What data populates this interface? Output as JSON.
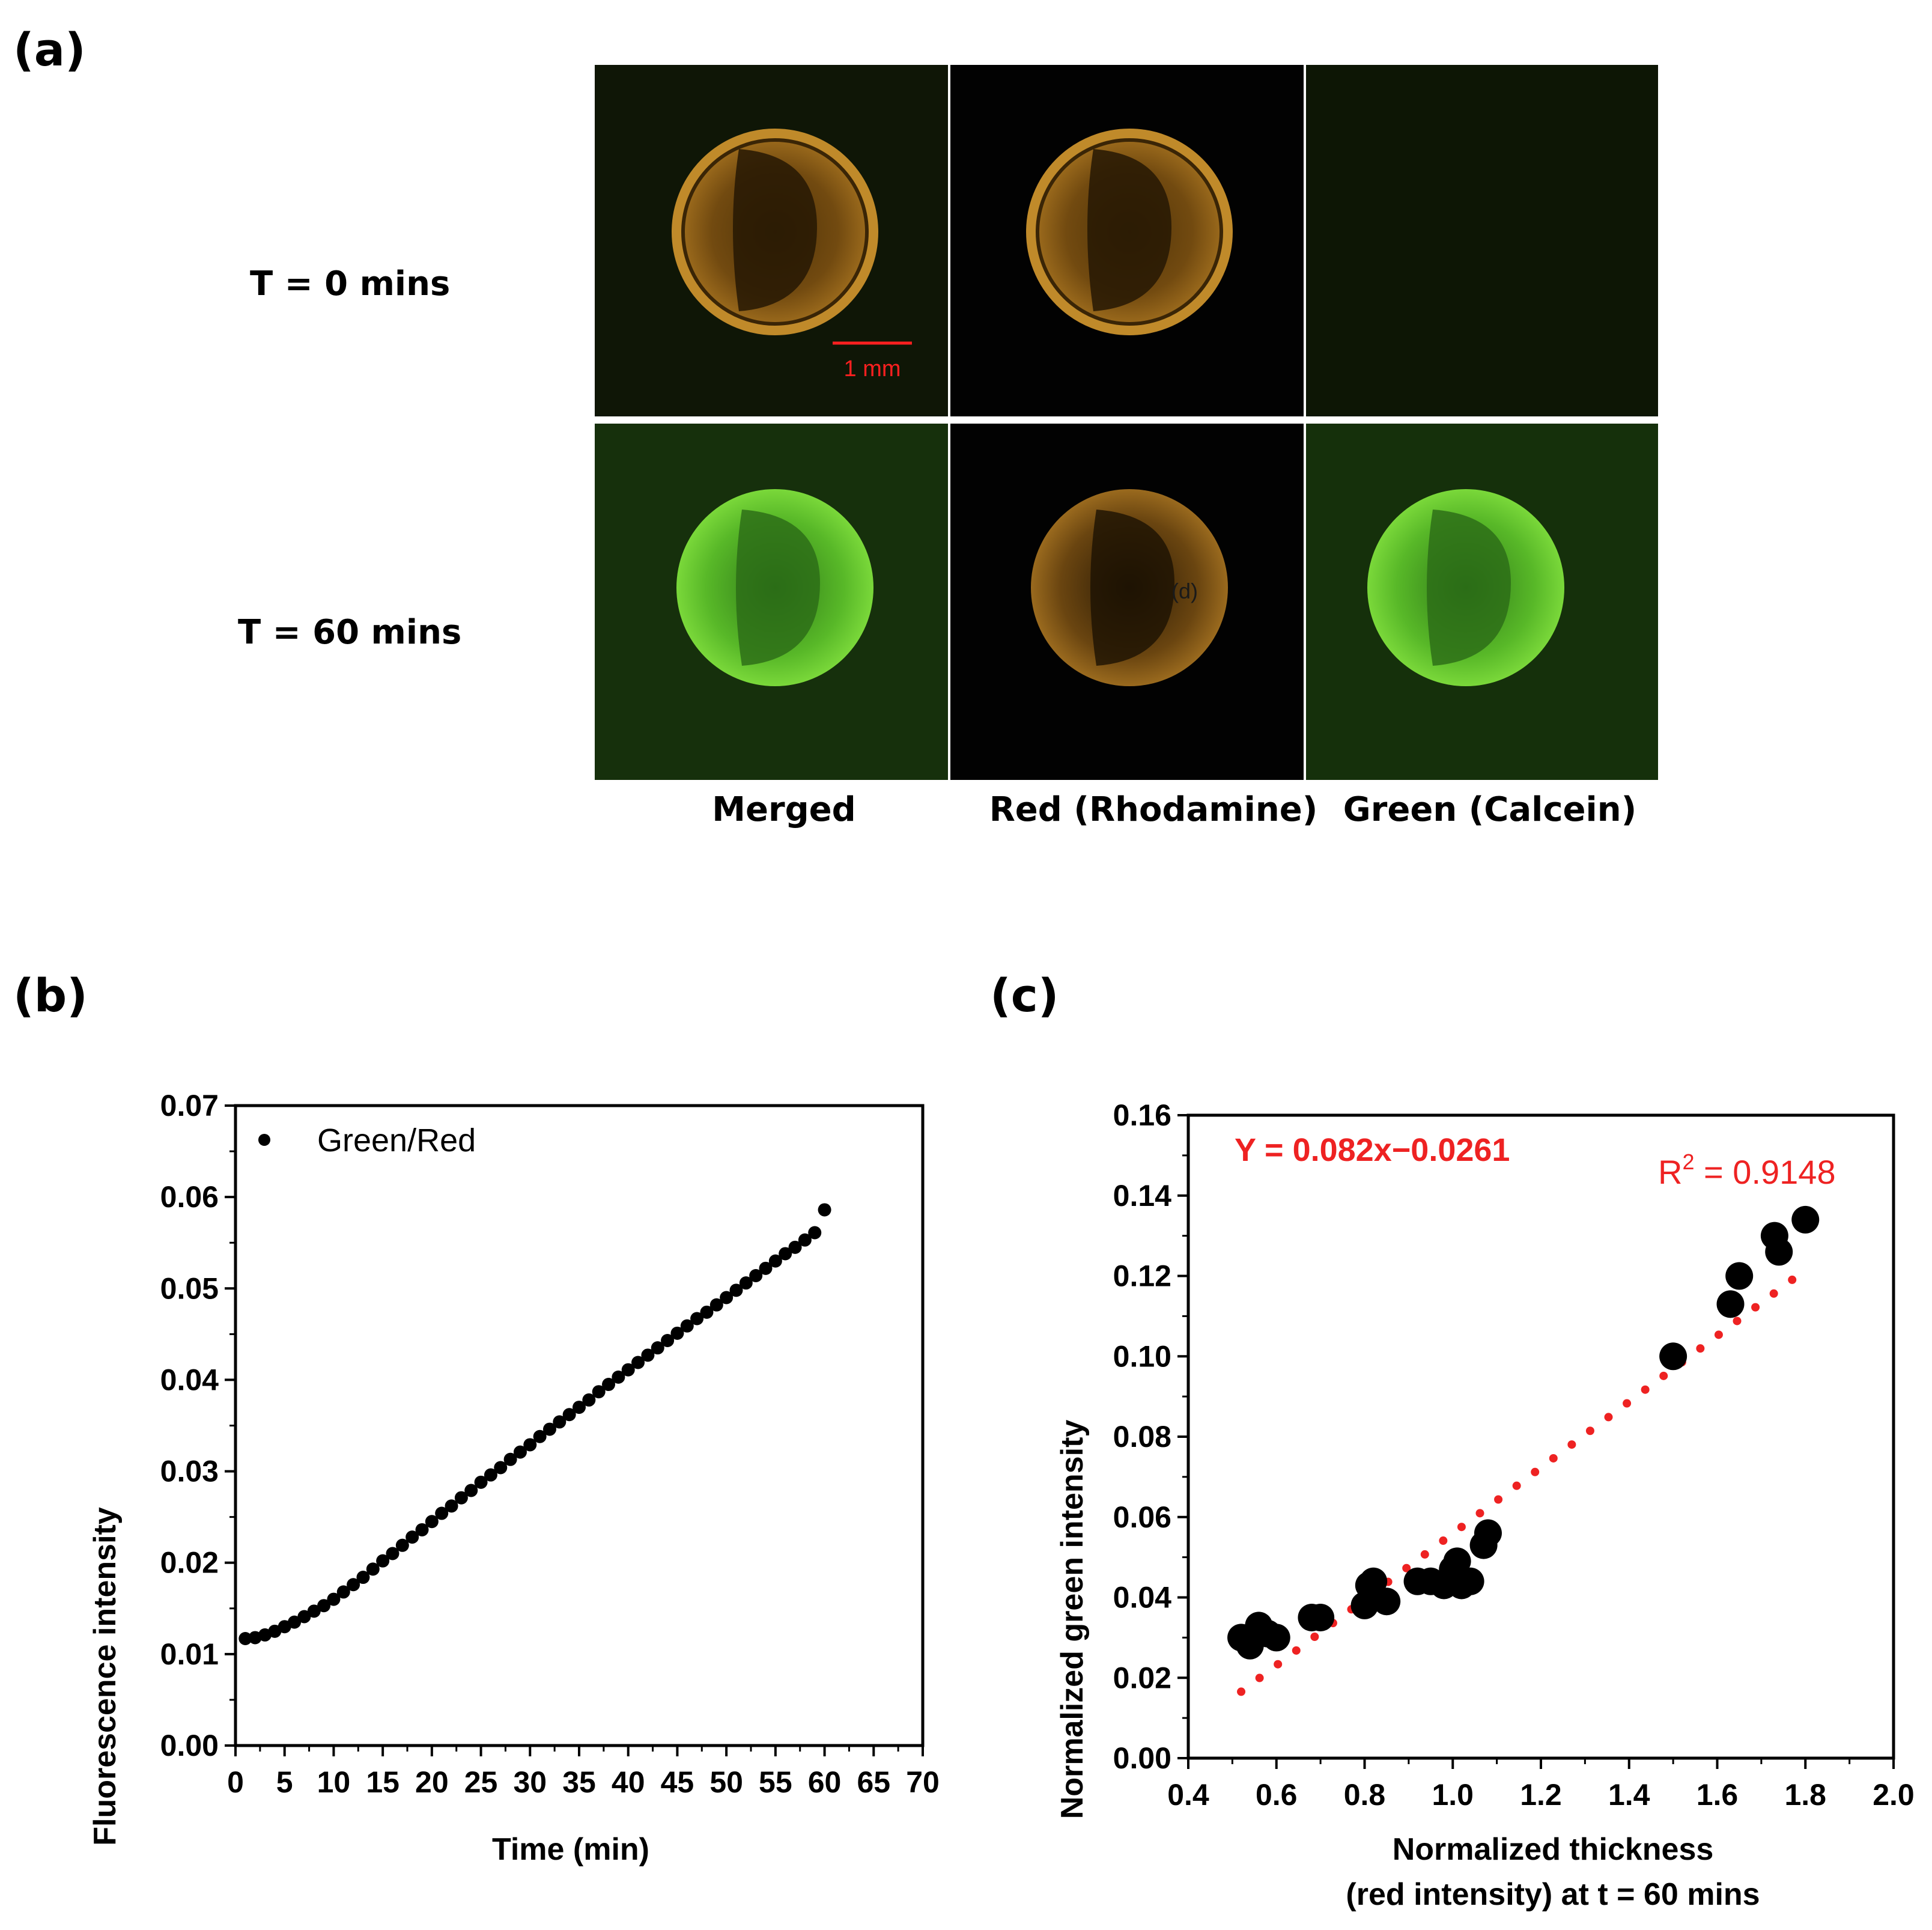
{
  "panels": {
    "a": {
      "label": "(a)"
    },
    "b": {
      "label": "(b)"
    },
    "c": {
      "label": "(c)"
    }
  },
  "micrographs": {
    "rows": [
      {
        "label": "T = 0 mins"
      },
      {
        "label": "T = 60 mins"
      }
    ],
    "columns": [
      {
        "label": "Merged"
      },
      {
        "label": "Red (Rhodamine)"
      },
      {
        "label": "Green (Calcein)"
      }
    ],
    "scale_bar": {
      "label": "1 mm"
    },
    "annotation": "(d)",
    "colors": {
      "dark_background": "#0d1505",
      "black_background": "#020202",
      "rhodamine_orange": "#c0801c",
      "calcein_green": "#59c424",
      "scale_bar_red": "#ff2020"
    }
  },
  "chart_data": [
    {
      "id": "b",
      "type": "scatter",
      "title": "",
      "xlabel": "Time (min)",
      "ylabel": "Fluorescence intensity",
      "xlim": [
        0,
        70
      ],
      "ylim": [
        0,
        0.07
      ],
      "xticks": [
        "0",
        "5",
        "10",
        "15",
        "20",
        "25",
        "30",
        "35",
        "40",
        "45",
        "50",
        "55",
        "60",
        "65",
        "70"
      ],
      "yticks": [
        "0.00",
        "0.01",
        "0.02",
        "0.03",
        "0.04",
        "0.05",
        "0.06",
        "0.07"
      ],
      "legend": {
        "label": "Green/Red",
        "placement": "top-left"
      },
      "series": [
        {
          "name": "Green/Red",
          "x": [
            1,
            2,
            3,
            4,
            5,
            6,
            7,
            8,
            9,
            10,
            11,
            12,
            13,
            14,
            15,
            16,
            17,
            18,
            19,
            20,
            21,
            22,
            23,
            24,
            25,
            26,
            27,
            28,
            29,
            30,
            31,
            32,
            33,
            34,
            35,
            36,
            37,
            38,
            39,
            40,
            41,
            42,
            43,
            44,
            45,
            46,
            47,
            48,
            49,
            50,
            51,
            52,
            53,
            54,
            55,
            56,
            57,
            58,
            59,
            60
          ],
          "y": [
            0.0117,
            0.0118,
            0.0121,
            0.0125,
            0.013,
            0.0135,
            0.0141,
            0.0147,
            0.0153,
            0.016,
            0.0168,
            0.0176,
            0.0184,
            0.0193,
            0.0202,
            0.021,
            0.0219,
            0.0228,
            0.0236,
            0.0245,
            0.0254,
            0.0262,
            0.0271,
            0.0279,
            0.0288,
            0.0296,
            0.0304,
            0.0313,
            0.0321,
            0.0329,
            0.0338,
            0.0346,
            0.0354,
            0.0362,
            0.037,
            0.0378,
            0.0387,
            0.0395,
            0.0403,
            0.0411,
            0.0419,
            0.0427,
            0.0435,
            0.0443,
            0.0451,
            0.0459,
            0.0467,
            0.0474,
            0.0482,
            0.049,
            0.0498,
            0.0506,
            0.0514,
            0.0522,
            0.053,
            0.0538,
            0.0545,
            0.0553,
            0.0561,
            0.0586
          ]
        }
      ]
    },
    {
      "id": "c",
      "type": "scatter",
      "title": "",
      "xlabel": "Normalized thickness",
      "xlabel2": "(red intensity) at t = 60 mins",
      "ylabel": "Normalized green intensity",
      "xlim": [
        0.4,
        2.0
      ],
      "ylim": [
        0,
        0.16
      ],
      "xticks": [
        "0.4",
        "0.6",
        "0.8",
        "1.0",
        "1.2",
        "1.4",
        "1.6",
        "1.8",
        "2.0"
      ],
      "yticks": [
        "0.00",
        "0.02",
        "0.04",
        "0.06",
        "0.08",
        "0.10",
        "0.12",
        "0.14",
        "0.16"
      ],
      "fit": {
        "equation": "Y = 0.082x−0.0261",
        "r2_prefix": "R",
        "r2_exponent": "2",
        "r2_value": " = 0.9148",
        "slope": 0.082,
        "intercept": -0.0261,
        "x_range": [
          0.52,
          1.77
        ],
        "color": "#ee2222"
      },
      "points": {
        "x": [
          0.52,
          0.54,
          0.56,
          0.58,
          0.6,
          0.68,
          0.7,
          0.8,
          0.81,
          0.82,
          0.85,
          0.92,
          0.95,
          0.98,
          1.0,
          1.01,
          1.02,
          1.04,
          1.07,
          1.08,
          1.5,
          1.63,
          1.65,
          1.73,
          1.74,
          1.8
        ],
        "y": [
          0.03,
          0.028,
          0.033,
          0.031,
          0.03,
          0.035,
          0.035,
          0.038,
          0.043,
          0.044,
          0.039,
          0.044,
          0.044,
          0.043,
          0.047,
          0.049,
          0.043,
          0.044,
          0.053,
          0.056,
          0.1,
          0.113,
          0.12,
          0.13,
          0.126,
          0.134
        ]
      }
    }
  ]
}
